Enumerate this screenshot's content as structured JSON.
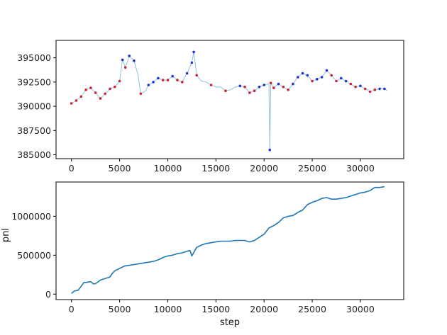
{
  "chart_data": [
    {
      "type": "scatter",
      "title": "",
      "xlabel": "",
      "ylabel": "",
      "xlim": [
        -1600,
        34500
      ],
      "ylim": [
        384600,
        396800
      ],
      "xticks": [
        0,
        5000,
        10000,
        15000,
        20000,
        25000,
        30000
      ],
      "xtick_labels": [
        "0",
        "5000",
        "10000",
        "15000",
        "20000",
        "25000",
        "30000"
      ],
      "yticks": [
        385000,
        387500,
        390000,
        392500,
        395000
      ],
      "ytick_labels": [
        "385000",
        "387500",
        "390000",
        "392500",
        "395000"
      ],
      "grid": false,
      "colors": {
        "line": "#8ec3db",
        "up": "#1f2fd6",
        "down": "#cc2233"
      },
      "x": [
        0,
        500,
        1000,
        1500,
        2000,
        2500,
        3000,
        3500,
        4000,
        4500,
        5000,
        5300,
        5600,
        6000,
        6500,
        6900,
        7200,
        7700,
        8000,
        8500,
        9000,
        9500,
        10000,
        10500,
        11000,
        11500,
        12000,
        12500,
        12700,
        13000,
        13500,
        14000,
        14500,
        15000,
        15500,
        16000,
        16500,
        17000,
        17500,
        18000,
        18500,
        19000,
        19500,
        20000,
        20500,
        20600,
        20700,
        21000,
        21500,
        22000,
        22500,
        23000,
        23500,
        24000,
        24500,
        25000,
        25500,
        26000,
        26500,
        27000,
        27500,
        28000,
        28500,
        29000,
        29500,
        30000,
        30500,
        31000,
        31500,
        32000,
        32500,
        32800
      ],
      "values": [
        390300,
        390600,
        391000,
        391700,
        391900,
        391400,
        390800,
        391300,
        391800,
        392000,
        392600,
        394800,
        394000,
        395200,
        394700,
        393300,
        391300,
        391600,
        392200,
        392500,
        392900,
        392700,
        392700,
        393100,
        392700,
        392500,
        393400,
        394500,
        395600,
        393200,
        392600,
        392500,
        392200,
        392000,
        392000,
        391600,
        391700,
        392000,
        392100,
        392000,
        391400,
        391600,
        392000,
        392200,
        392300,
        385500,
        392400,
        391900,
        392300,
        392000,
        391700,
        392300,
        393000,
        393400,
        393200,
        392600,
        392800,
        393000,
        393700,
        393200,
        392600,
        392900,
        392600,
        392300,
        392000,
        392100,
        391800,
        391500,
        391700,
        391800,
        391800,
        391600
      ],
      "signals": [
        "down",
        "down",
        "down",
        "down",
        "down",
        "down",
        "down",
        "down",
        "down",
        "down",
        "down",
        "up",
        "down",
        "up",
        "up",
        "none",
        "down",
        "none",
        "up",
        "up",
        "up",
        "down",
        "down",
        "up",
        "down",
        "down",
        "up",
        "up",
        "up",
        "down",
        "none",
        "none",
        "down",
        "none",
        "none",
        "down",
        "none",
        "none",
        "up",
        "down",
        "down",
        "down",
        "up",
        "up",
        "none",
        "up",
        "down",
        "down",
        "up",
        "down",
        "down",
        "up",
        "up",
        "up",
        "up",
        "down",
        "up",
        "up",
        "up",
        "down",
        "down",
        "up",
        "up",
        "down",
        "down",
        "up",
        "down",
        "down",
        "down",
        "up",
        "up",
        "none"
      ]
    },
    {
      "type": "line",
      "title": "",
      "xlabel": "step",
      "ylabel": "pnl",
      "xlim": [
        -1600,
        34500
      ],
      "ylim": [
        -70000,
        1440000
      ],
      "xticks": [
        0,
        5000,
        10000,
        15000,
        20000,
        25000,
        30000
      ],
      "xtick_labels": [
        "0",
        "5000",
        "10000",
        "15000",
        "20000",
        "25000",
        "30000"
      ],
      "yticks": [
        0,
        500000,
        1000000
      ],
      "ytick_labels": [
        "0",
        "500000",
        "1000000"
      ],
      "grid": false,
      "colors": {
        "line": "#1f77b4"
      },
      "x": [
        0,
        300,
        700,
        1000,
        1300,
        1500,
        2000,
        2300,
        2500,
        3000,
        3500,
        4000,
        4200,
        4500,
        5000,
        5500,
        6000,
        6500,
        7000,
        7500,
        8000,
        8500,
        9000,
        9500,
        10000,
        10500,
        11000,
        11500,
        12000,
        12300,
        12500,
        13000,
        13500,
        14000,
        14500,
        15000,
        15500,
        16000,
        16500,
        17000,
        17500,
        18000,
        18500,
        19000,
        19500,
        20000,
        20500,
        21000,
        21500,
        22000,
        22500,
        23000,
        23500,
        24000,
        24500,
        25000,
        25500,
        26000,
        26500,
        27000,
        27500,
        28000,
        28500,
        29000,
        29500,
        30000,
        30500,
        31000,
        31500,
        32000,
        32500
      ],
      "values": [
        10000,
        40000,
        50000,
        100000,
        150000,
        150000,
        160000,
        130000,
        135000,
        180000,
        200000,
        220000,
        260000,
        300000,
        330000,
        360000,
        370000,
        380000,
        390000,
        400000,
        410000,
        420000,
        440000,
        470000,
        490000,
        500000,
        520000,
        530000,
        550000,
        560000,
        490000,
        600000,
        630000,
        650000,
        660000,
        670000,
        680000,
        680000,
        680000,
        690000,
        690000,
        690000,
        670000,
        690000,
        730000,
        770000,
        850000,
        880000,
        920000,
        980000,
        1000000,
        1010000,
        1050000,
        1080000,
        1150000,
        1180000,
        1200000,
        1230000,
        1240000,
        1220000,
        1220000,
        1230000,
        1240000,
        1260000,
        1280000,
        1300000,
        1310000,
        1330000,
        1370000,
        1370000,
        1380000
      ]
    }
  ]
}
